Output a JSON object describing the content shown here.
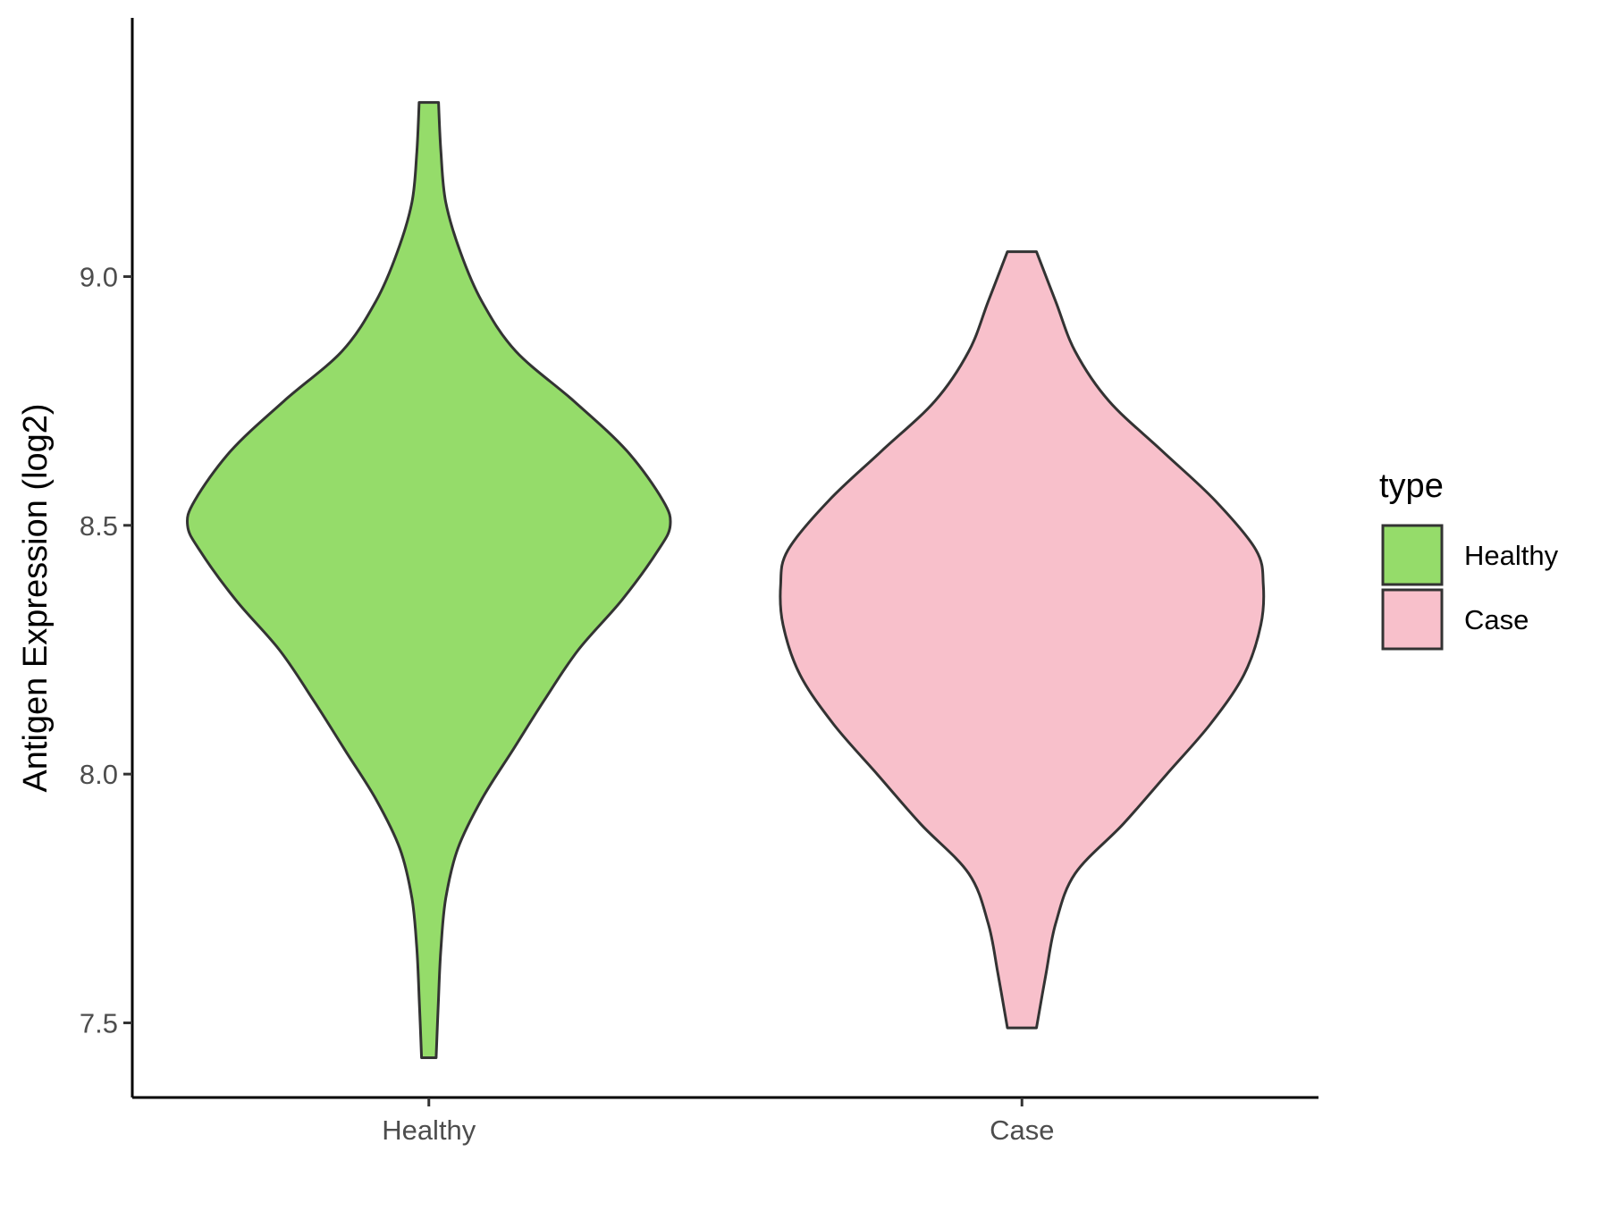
{
  "chart_data": {
    "type": "violin",
    "ylabel": "Antigen Expression (log2)",
    "xlabel": "",
    "categories": [
      "Healthy",
      "Case"
    ],
    "ylim": [
      7.35,
      9.52
    ],
    "y_ticks": [
      7.5,
      8.0,
      8.5,
      9.0
    ],
    "y_tick_labels": [
      "7.5",
      "8.0",
      "8.5",
      "9.0"
    ],
    "grid": false,
    "legend": {
      "title": "type",
      "position": "right",
      "entries": [
        {
          "label": "Healthy",
          "color": "#95DC6A"
        },
        {
          "label": "Case",
          "color": "#F8C0CB"
        }
      ]
    },
    "series": [
      {
        "category": "Healthy",
        "color": "#95DC6A",
        "y_min": 7.43,
        "y_max": 9.35,
        "density_profile": [
          [
            7.43,
            0.03
          ],
          [
            7.55,
            0.04
          ],
          [
            7.65,
            0.05
          ],
          [
            7.75,
            0.07
          ],
          [
            7.85,
            0.12
          ],
          [
            7.95,
            0.22
          ],
          [
            8.05,
            0.35
          ],
          [
            8.15,
            0.48
          ],
          [
            8.25,
            0.62
          ],
          [
            8.35,
            0.8
          ],
          [
            8.45,
            0.95
          ],
          [
            8.5,
            1.0
          ],
          [
            8.55,
            0.97
          ],
          [
            8.65,
            0.82
          ],
          [
            8.75,
            0.6
          ],
          [
            8.85,
            0.36
          ],
          [
            8.95,
            0.22
          ],
          [
            9.05,
            0.13
          ],
          [
            9.15,
            0.07
          ],
          [
            9.25,
            0.05
          ],
          [
            9.35,
            0.04
          ]
        ]
      },
      {
        "category": "Case",
        "color": "#F8C0CB",
        "y_min": 7.49,
        "y_max": 9.05,
        "density_profile": [
          [
            7.49,
            0.06
          ],
          [
            7.6,
            0.1
          ],
          [
            7.7,
            0.14
          ],
          [
            7.8,
            0.22
          ],
          [
            7.9,
            0.42
          ],
          [
            8.0,
            0.6
          ],
          [
            8.1,
            0.78
          ],
          [
            8.2,
            0.92
          ],
          [
            8.3,
            0.99
          ],
          [
            8.38,
            1.0
          ],
          [
            8.45,
            0.97
          ],
          [
            8.55,
            0.8
          ],
          [
            8.65,
            0.58
          ],
          [
            8.75,
            0.36
          ],
          [
            8.85,
            0.22
          ],
          [
            8.95,
            0.14
          ],
          [
            9.05,
            0.06
          ]
        ]
      }
    ]
  }
}
